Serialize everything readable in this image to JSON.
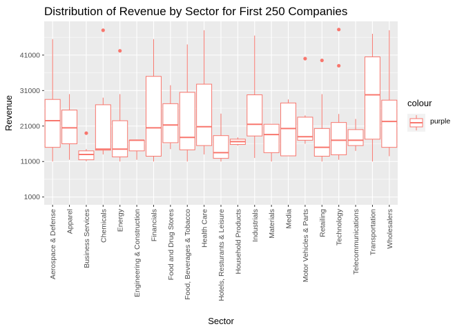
{
  "chart_data": {
    "type": "boxplot",
    "title": "Distribution of Revenue by Sector for First 250 Companies",
    "xlabel": "Sector",
    "ylabel": "Revenue",
    "y_ticks": [
      1000,
      11000,
      21000,
      31000,
      41000
    ],
    "ylim": [
      -1200,
      50500
    ],
    "grid": true,
    "legend": {
      "title": "colour",
      "position": "right",
      "entries": [
        {
          "label": "purple",
          "color": "#F8766D"
        }
      ]
    },
    "series_color": "#F8766D",
    "categories": [
      "Aerospace & Defense",
      "Apparel",
      "Business Services",
      "Chemicals",
      "Energy",
      "Engineering & Construction",
      "Financials",
      "Food and Drug Stores",
      "Food, Beverages & Tobacco",
      "Health Care",
      "Hotels, Resturants & Leisure",
      "Household Products",
      "Industrials",
      "Materials",
      "Media",
      "Motor Vehicles & Parts",
      "Retailing",
      "Technology",
      "Telecommunications",
      "Transportation",
      "Wholesalers"
    ],
    "boxes": [
      {
        "min": 11000,
        "q1": 15000,
        "median": 22500,
        "q3": 28500,
        "max": 45500,
        "outliers": []
      },
      {
        "min": 11500,
        "q1": 16000,
        "median": 20500,
        "q3": 25500,
        "max": 30000,
        "outliers": []
      },
      {
        "min": 11100,
        "q1": 11500,
        "median": 13000,
        "q3": 14000,
        "max": 14500,
        "outliers": [
          19000
        ]
      },
      {
        "min": 13000,
        "q1": 14200,
        "median": 14500,
        "q3": 27000,
        "max": 29000,
        "outliers": [
          48000
        ]
      },
      {
        "min": 11000,
        "q1": 12300,
        "median": 14500,
        "q3": 22500,
        "max": 30000,
        "outliers": [
          42200
        ]
      },
      {
        "min": 11500,
        "q1": 14000,
        "median": 17000,
        "q3": 17000,
        "max": 17200,
        "outliers": []
      },
      {
        "min": 11000,
        "q1": 12500,
        "median": 20500,
        "q3": 35000,
        "max": 45500,
        "outliers": []
      },
      {
        "min": 14500,
        "q1": 16300,
        "median": 21300,
        "q3": 27300,
        "max": 32500,
        "outliers": []
      },
      {
        "min": 11000,
        "q1": 14300,
        "median": 17800,
        "q3": 30500,
        "max": 44000,
        "outliers": []
      },
      {
        "min": 13000,
        "q1": 15500,
        "median": 20800,
        "q3": 32800,
        "max": 48000,
        "outliers": []
      },
      {
        "min": 11000,
        "q1": 11900,
        "median": 13500,
        "q3": 18300,
        "max": 24500,
        "outliers": []
      },
      {
        "min": 15500,
        "q1": 15800,
        "median": 16600,
        "q3": 17300,
        "max": 17800,
        "outliers": []
      },
      {
        "min": 12000,
        "q1": 18200,
        "median": 21500,
        "q3": 29800,
        "max": 46500,
        "outliers": []
      },
      {
        "min": 11000,
        "q1": 13500,
        "median": 18600,
        "q3": 21500,
        "max": 21500,
        "outliers": []
      },
      {
        "min": 12500,
        "q1": 12600,
        "median": 20300,
        "q3": 27500,
        "max": 28500,
        "outliers": []
      },
      {
        "min": 16000,
        "q1": 17000,
        "median": 18000,
        "q3": 23500,
        "max": 24000,
        "outliers": [
          40000
        ]
      },
      {
        "min": 11000,
        "q1": 12500,
        "median": 15000,
        "q3": 20300,
        "max": 30000,
        "outliers": [
          39500
        ]
      },
      {
        "min": 11500,
        "q1": 12900,
        "median": 17000,
        "q3": 22000,
        "max": 24400,
        "outliers": [
          38000,
          48200
        ]
      },
      {
        "min": 14000,
        "q1": 15500,
        "median": 17000,
        "q3": 20000,
        "max": 23000,
        "outliers": []
      },
      {
        "min": 11000,
        "q1": 17300,
        "median": 29800,
        "q3": 40500,
        "max": 47000,
        "outliers": []
      },
      {
        "min": 12500,
        "q1": 15000,
        "median": 22300,
        "q3": 28300,
        "max": 48000,
        "outliers": []
      }
    ]
  }
}
